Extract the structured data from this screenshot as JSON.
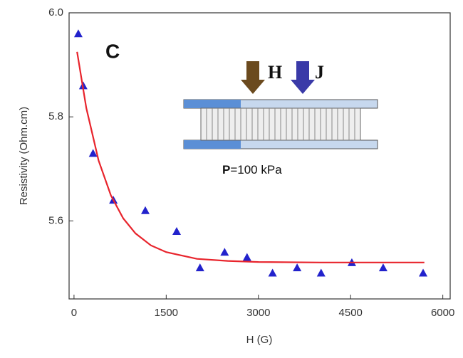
{
  "chart_data": {
    "type": "scatter",
    "x_label": "H (G)",
    "y_label": "Resistivity (Ohm.cm)",
    "xlim": [
      -80,
      6120
    ],
    "ylim": [
      5.45,
      6.0
    ],
    "xticks": [
      0,
      1500,
      3000,
      4500,
      6000
    ],
    "yticks": [
      5.6,
      5.8,
      {
        "value": 6.0,
        "label": "6.0"
      }
    ],
    "series": [
      {
        "kind": "marker",
        "color": "#2222cc",
        "x": [
          70,
          150,
          310,
          640,
          1160,
          1670,
          2050,
          2450,
          2815,
          3230,
          3630,
          4020,
          4520,
          5030,
          5680
        ],
        "values": [
          5.96,
          5.86,
          5.73,
          5.64,
          5.62,
          5.58,
          5.51,
          5.54,
          5.53,
          5.5,
          5.51,
          5.5,
          5.52,
          5.51,
          5.5
        ]
      },
      {
        "kind": "line",
        "color": "#e8242c",
        "x": [
          50,
          200,
          400,
          600,
          800,
          1000,
          1250,
          1500,
          2000,
          2500,
          3000,
          4000,
          5000,
          5700
        ],
        "values": [
          5.925,
          5.817,
          5.716,
          5.649,
          5.605,
          5.576,
          5.553,
          5.54,
          5.527,
          5.523,
          5.521,
          5.52,
          5.52,
          5.52
        ]
      }
    ],
    "annotations": {
      "panel": "C",
      "field": "H",
      "current": "J",
      "pressure_symbol": "P",
      "pressure_value": "=100 kPa"
    }
  }
}
